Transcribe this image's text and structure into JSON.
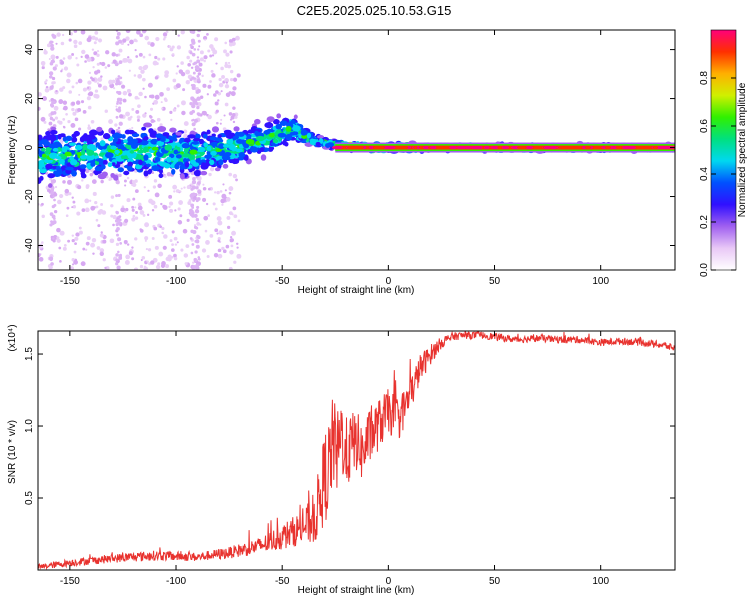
{
  "title": "C2E5.2025.025.10.53.G15",
  "colors": {
    "snr_line": "#e8322e",
    "background": "#ffffff",
    "colormap": [
      "#ffffff",
      "#e9c8f6",
      "#a060f0",
      "#3010ff",
      "#0050ff",
      "#00d8f0",
      "#00e080",
      "#30f000",
      "#d0f000",
      "#ffb000",
      "#ff3000",
      "#ff007a"
    ]
  },
  "chart_data": [
    {
      "type": "heatmap",
      "title": "",
      "xlabel": "Height of straight line (km)",
      "ylabel": "Frequency (Hz)",
      "xlim": [
        -165,
        135
      ],
      "ylim": [
        -50,
        48
      ],
      "xticks": [
        "-150",
        "-100",
        "-50",
        "0",
        "50",
        "100"
      ],
      "xtick_values": [
        -150,
        -100,
        -50,
        0,
        50,
        100
      ],
      "yticks": [
        "-40",
        "-20",
        "0",
        "20",
        "40"
      ],
      "ytick_values": [
        -40,
        -20,
        0,
        20,
        40
      ],
      "colorbar": {
        "label": "Normalized spectral amplitude",
        "ticks": [
          "0.0",
          "0.2",
          "0.4",
          "0.6",
          "0.8"
        ],
        "tick_values": [
          0.0,
          0.2,
          0.4,
          0.6,
          0.8
        ],
        "range": [
          0,
          1
        ]
      },
      "ridge": {
        "x": [
          -165,
          -150,
          -130,
          -110,
          -90,
          -75,
          -60,
          -50,
          -45,
          -40,
          -35,
          -30,
          -25,
          -20,
          -10,
          0,
          10,
          20,
          50,
          100,
          135
        ],
        "center_hz": [
          -4,
          -3,
          -2,
          -2,
          -3,
          0,
          3,
          6,
          8,
          5,
          3,
          2,
          1,
          0.5,
          0,
          0,
          0,
          0,
          0,
          0,
          0
        ],
        "spread_hz": [
          14,
          14,
          13,
          13,
          12,
          10,
          9,
          9,
          7,
          4,
          3,
          2.5,
          2,
          2,
          2,
          2,
          2,
          1.5,
          1.5,
          1.5,
          1.5
        ]
      }
    },
    {
      "type": "line",
      "title": "",
      "xlabel": "Height of straight line (km)",
      "ylabel": "SNR (10 * v/v)",
      "y_multiplier": "(x10⁴)",
      "xlim": [
        -165,
        135
      ],
      "ylim": [
        0,
        16600
      ],
      "xticks": [
        "-150",
        "-100",
        "-50",
        "0",
        "50",
        "100"
      ],
      "xtick_values": [
        -150,
        -100,
        -50,
        0,
        50,
        100
      ],
      "yticks": [
        "0.5",
        "1.0",
        "1.5"
      ],
      "ytick_values": [
        5000,
        10000,
        15000
      ],
      "series": [
        {
          "color": "#e8322e",
          "x": [
            -165,
            -150,
            -130,
            -110,
            -90,
            -75,
            -60,
            -50,
            -40,
            -35,
            -32,
            -30,
            -28,
            -26,
            -24,
            -22,
            -20,
            -18,
            -15,
            -12,
            -10,
            -5,
            0,
            5,
            10,
            15,
            20,
            25,
            30,
            35,
            40,
            45,
            50,
            60,
            70,
            80,
            90,
            100,
            110,
            120,
            130,
            135
          ],
          "y": [
            200,
            500,
            800,
            1000,
            900,
            1200,
            1700,
            2300,
            3000,
            3500,
            5000,
            6500,
            7000,
            9000,
            8000,
            9500,
            8000,
            8500,
            9000,
            8000,
            9000,
            10000,
            11000,
            10500,
            12000,
            14000,
            15000,
            15800,
            16200,
            16300,
            16300,
            16300,
            16200,
            16000,
            16100,
            16000,
            16000,
            15800,
            15900,
            15800,
            15600,
            15400
          ],
          "noise": [
            200,
            250,
            300,
            350,
            300,
            400,
            600,
            900,
            1200,
            1800,
            2600,
            3200,
            3500,
            3200,
            3000,
            2800,
            2600,
            2400,
            2200,
            2000,
            1900,
            1800,
            1600,
            1500,
            1300,
            1000,
            700,
            400,
            300,
            250,
            250,
            250,
            250,
            250,
            250,
            250,
            250,
            250,
            250,
            250,
            250,
            250
          ]
        }
      ]
    }
  ]
}
